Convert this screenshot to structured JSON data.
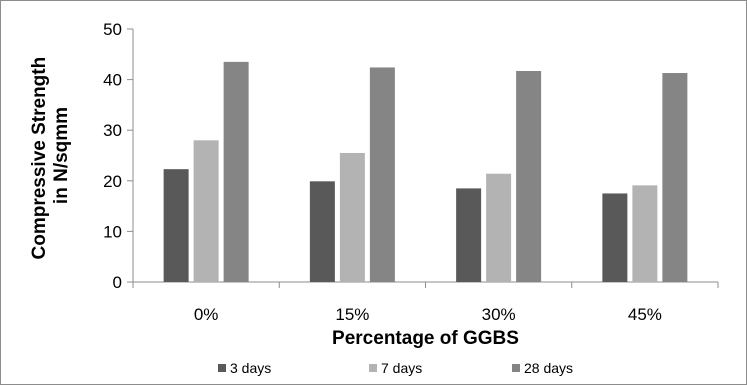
{
  "chart_data": {
    "type": "bar",
    "title": "",
    "xlabel": "Percentage of GGBS",
    "ylabel_lines": [
      "Compressive Strength",
      "in N/sqmm"
    ],
    "categories": [
      "0%",
      "15%",
      "30%",
      "45%"
    ],
    "ylim": [
      0,
      50
    ],
    "yticks": [
      "0",
      "10",
      "20",
      "30",
      "40",
      "50"
    ],
    "grid": false,
    "legend_position": "bottom",
    "series": [
      {
        "name": "3 days",
        "color": "#595959",
        "values": [
          22.3,
          19.9,
          18.5,
          17.5
        ]
      },
      {
        "name": "7 days",
        "color": "#b3b3b3",
        "values": [
          28.0,
          25.5,
          21.4,
          19.1
        ]
      },
      {
        "name": "28 days",
        "color": "#858585",
        "values": [
          43.5,
          42.4,
          41.7,
          41.3
        ]
      }
    ]
  }
}
